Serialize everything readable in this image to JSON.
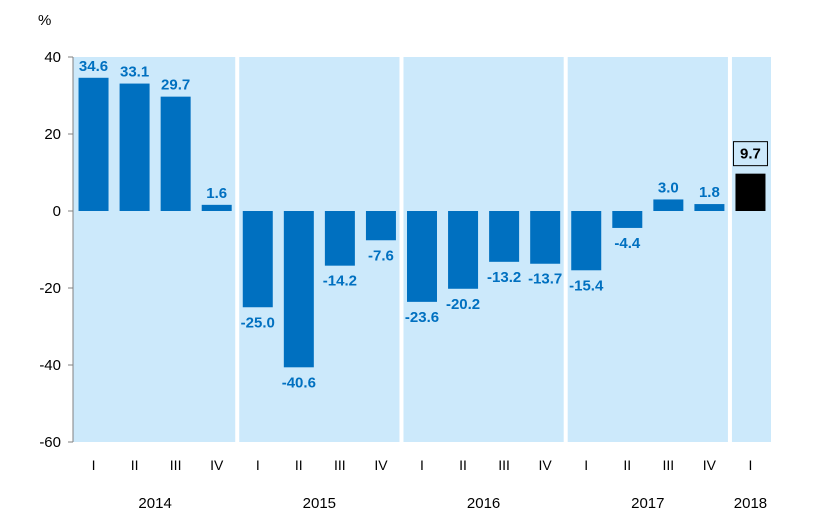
{
  "chart_data": {
    "type": "bar",
    "y_unit": "%",
    "ylim": [
      -60,
      40
    ],
    "yticks": [
      40,
      20,
      0,
      -20,
      -40,
      -60
    ],
    "grid": false,
    "categories": [
      "I",
      "II",
      "III",
      "IV",
      "I",
      "II",
      "III",
      "IV",
      "I",
      "II",
      "III",
      "IV",
      "I",
      "II",
      "III",
      "IV",
      "I"
    ],
    "years": [
      {
        "label": "2014",
        "count": 4
      },
      {
        "label": "2015",
        "count": 4
      },
      {
        "label": "2016",
        "count": 4
      },
      {
        "label": "2017",
        "count": 4
      },
      {
        "label": "2018",
        "count": 1
      }
    ],
    "values": [
      34.6,
      33.1,
      29.7,
      1.6,
      -25.0,
      -40.6,
      -14.2,
      -7.6,
      -23.6,
      -20.2,
      -13.2,
      -13.7,
      -15.4,
      -4.4,
      3.0,
      1.8,
      9.7
    ],
    "data_labels": [
      "34.6",
      "33.1",
      "29.7",
      "1.6",
      "-25.0",
      "-40.6",
      "-14.2",
      "-7.6",
      "-23.6",
      "-20.2",
      "-13.2",
      "-13.7",
      "-15.4",
      "-4.4",
      "3.0",
      "1.8",
      "9.7"
    ],
    "highlight_last": true,
    "colors": {
      "bar": "#0070c0",
      "bar_highlight": "#000000",
      "label": "#0070c0",
      "panel": "#cce9fb",
      "separator": "#ffffff"
    }
  }
}
